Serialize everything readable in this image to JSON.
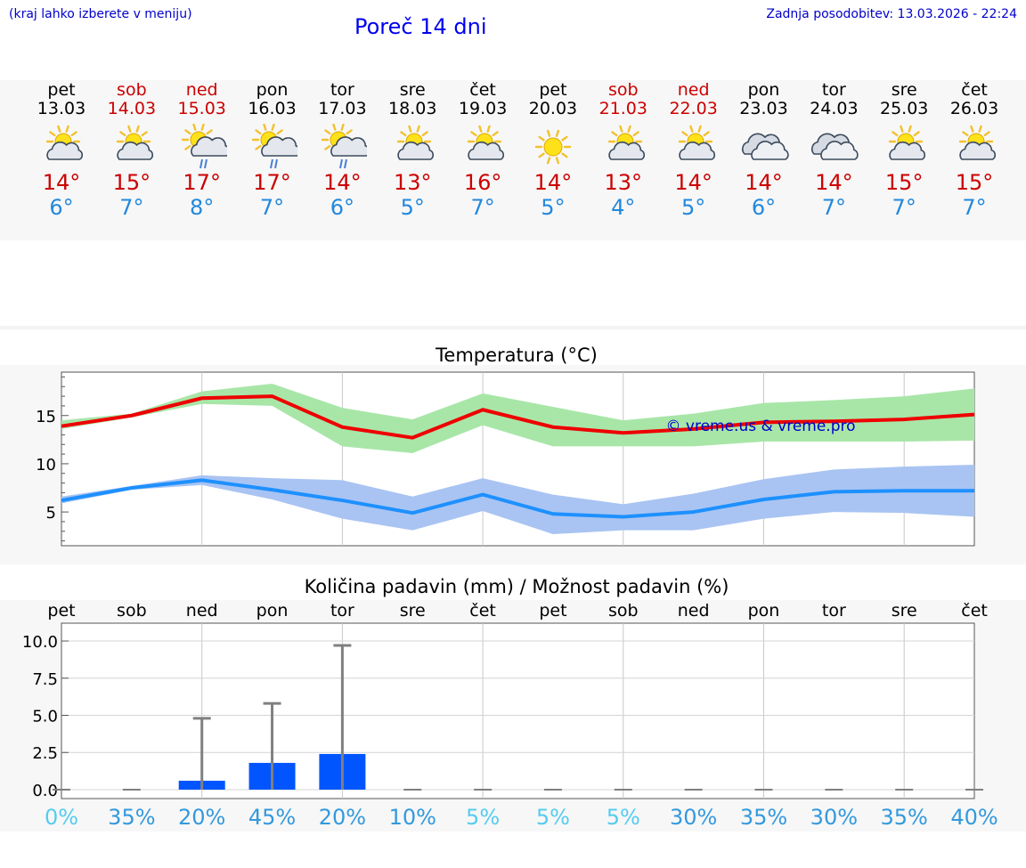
{
  "header": {
    "hint": "(kraj lahko izberete v meniju)",
    "title": "Poreč 14 dni",
    "updated": "Zadnja posodobitev: 13.03.2026 - 22:24"
  },
  "days": [
    {
      "name": "pet",
      "date": "13.03",
      "weekend": false,
      "icon": "sun-cloud-icon",
      "max": "14°",
      "min": "6°"
    },
    {
      "name": "sob",
      "date": "14.03",
      "weekend": true,
      "icon": "sun-cloud-icon",
      "max": "15°",
      "min": "7°"
    },
    {
      "name": "ned",
      "date": "15.03",
      "weekend": true,
      "icon": "sun-cloud-rain-icon",
      "max": "17°",
      "min": "8°"
    },
    {
      "name": "pon",
      "date": "16.03",
      "weekend": false,
      "icon": "sun-cloud-rain-icon",
      "max": "17°",
      "min": "7°"
    },
    {
      "name": "tor",
      "date": "17.03",
      "weekend": false,
      "icon": "sun-cloud-rain-icon",
      "max": "14°",
      "min": "6°"
    },
    {
      "name": "sre",
      "date": "18.03",
      "weekend": false,
      "icon": "sun-cloud-icon",
      "max": "13°",
      "min": "5°"
    },
    {
      "name": "čet",
      "date": "19.03",
      "weekend": false,
      "icon": "sun-cloud-icon",
      "max": "16°",
      "min": "7°"
    },
    {
      "name": "pet",
      "date": "20.03",
      "weekend": false,
      "icon": "sun-icon",
      "max": "14°",
      "min": "5°"
    },
    {
      "name": "sob",
      "date": "21.03",
      "weekend": true,
      "icon": "sun-cloud-icon",
      "max": "13°",
      "min": "4°"
    },
    {
      "name": "ned",
      "date": "22.03",
      "weekend": true,
      "icon": "sun-cloud-icon",
      "max": "14°",
      "min": "5°"
    },
    {
      "name": "pon",
      "date": "23.03",
      "weekend": false,
      "icon": "cloudy-icon",
      "max": "14°",
      "min": "6°"
    },
    {
      "name": "tor",
      "date": "24.03",
      "weekend": false,
      "icon": "cloudy-icon",
      "max": "14°",
      "min": "7°"
    },
    {
      "name": "sre",
      "date": "25.03",
      "weekend": false,
      "icon": "sun-cloud-icon",
      "max": "15°",
      "min": "7°"
    },
    {
      "name": "čet",
      "date": "26.03",
      "weekend": false,
      "icon": "sun-cloud-icon",
      "max": "15°",
      "min": "7°"
    }
  ],
  "colors": {
    "weekend": "#cc0000",
    "max_line": "#ee0000",
    "max_band": "#a8e6a8",
    "min_line": "#1e90ff",
    "min_band": "#a9c4f2",
    "bar": "#0055ff",
    "errorbar": "#808080"
  },
  "chart_data": [
    {
      "type": "line",
      "title": "Temperatura (°C)",
      "watermark": "© vreme.us & vreme.pro",
      "x": [
        0,
        1,
        2,
        3,
        4,
        5,
        6,
        7,
        8,
        9,
        10,
        11,
        12,
        13
      ],
      "ylim": [
        1.5,
        19.5
      ],
      "yticks": [
        5,
        10,
        15
      ],
      "series": [
        {
          "name": "max",
          "values": [
            13.9,
            15.0,
            16.8,
            17.0,
            13.8,
            12.7,
            15.6,
            13.8,
            13.2,
            13.6,
            14.3,
            14.4,
            14.6,
            15.1
          ],
          "band_low": [
            13.6,
            14.8,
            16.2,
            16.0,
            11.8,
            11.1,
            14.0,
            11.8,
            11.8,
            11.8,
            12.3,
            12.3,
            12.3,
            12.4
          ],
          "band_high": [
            14.5,
            15.2,
            17.5,
            18.3,
            15.8,
            14.6,
            17.3,
            15.9,
            14.5,
            15.2,
            16.3,
            16.6,
            17.0,
            17.8
          ]
        },
        {
          "name": "min",
          "values": [
            6.2,
            7.5,
            8.3,
            7.3,
            6.2,
            4.9,
            6.8,
            4.8,
            4.5,
            5.0,
            6.3,
            7.1,
            7.2,
            7.2
          ],
          "band_low": [
            5.9,
            7.3,
            7.8,
            6.3,
            4.3,
            3.1,
            5.1,
            2.7,
            3.1,
            3.1,
            4.3,
            5.0,
            4.9,
            4.5
          ],
          "band_high": [
            6.6,
            7.7,
            8.8,
            8.5,
            8.3,
            6.6,
            8.5,
            6.8,
            5.8,
            6.9,
            8.4,
            9.4,
            9.7,
            9.9
          ]
        }
      ]
    },
    {
      "type": "bar",
      "title": "Količina padavin (mm) / Možnost padavin (%)",
      "categories": [
        "pet",
        "sob",
        "ned",
        "pon",
        "tor",
        "sre",
        "čet",
        "pet",
        "sob",
        "ned",
        "pon",
        "tor",
        "sre",
        "čet"
      ],
      "values": [
        0,
        0,
        0.6,
        1.8,
        2.4,
        0,
        0,
        0,
        0,
        0,
        0,
        0,
        0,
        0
      ],
      "error_high": [
        0,
        0,
        4.8,
        5.8,
        9.7,
        0,
        0,
        0,
        0,
        0,
        0,
        0,
        0,
        0
      ],
      "probability": [
        "0%",
        "35%",
        "20%",
        "45%",
        "20%",
        "10%",
        "5%",
        "5%",
        "5%",
        "30%",
        "35%",
        "30%",
        "35%",
        "40%"
      ],
      "probability_colors": [
        "#55ccee",
        "#3399dd",
        "#3399dd",
        "#3399dd",
        "#3399dd",
        "#3399dd",
        "#55ccee",
        "#55ccee",
        "#55ccee",
        "#3399dd",
        "#3399dd",
        "#3399dd",
        "#3399dd",
        "#3399dd"
      ],
      "ylim": [
        -0.6,
        11.2
      ],
      "yticks": [
        "0.0",
        "2.5",
        "5.0",
        "7.5",
        "10.0"
      ]
    }
  ]
}
